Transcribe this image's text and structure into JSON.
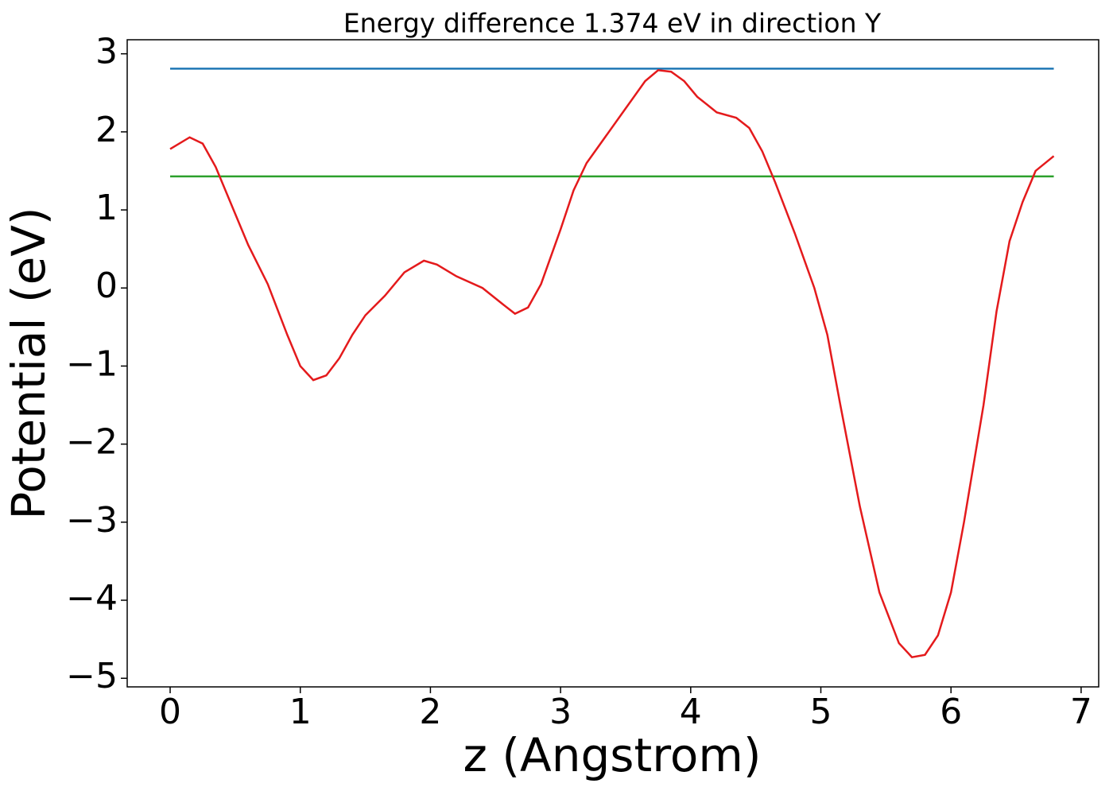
{
  "chart_data": {
    "type": "line",
    "title": "Energy difference 1.374 eV in direction Y",
    "xlabel": "z (Angstrom)",
    "ylabel": "Potential (eV)",
    "xlim": [
      -0.33,
      7.135
    ],
    "ylim": [
      -5.11,
      3.18
    ],
    "xticks": [
      0,
      1,
      2,
      3,
      4,
      5,
      6,
      7
    ],
    "yticks": [
      {
        "value": -5,
        "label": "−5"
      },
      {
        "value": -4,
        "label": "−4"
      },
      {
        "value": -3,
        "label": "−3"
      },
      {
        "value": -2,
        "label": "−2"
      },
      {
        "value": -1,
        "label": "−1"
      },
      0,
      1,
      2,
      3
    ],
    "series": [
      {
        "color": "#1f77b4",
        "x": [
          0,
          6.79
        ],
        "values": [
          2.81,
          2.81
        ]
      },
      {
        "color": "#2ca02c",
        "x": [
          0,
          6.79
        ],
        "values": [
          1.43,
          1.43
        ]
      },
      {
        "color": "#e41a1c",
        "x": [
          0,
          0.15,
          0.25,
          0.35,
          0.5,
          0.6,
          0.75,
          0.9,
          1.0,
          1.1,
          1.2,
          1.3,
          1.4,
          1.5,
          1.65,
          1.8,
          1.95,
          2.05,
          2.2,
          2.4,
          2.55,
          2.65,
          2.75,
          2.85,
          3.0,
          3.1,
          3.2,
          3.35,
          3.5,
          3.65,
          3.75,
          3.85,
          3.95,
          4.05,
          4.2,
          4.35,
          4.45,
          4.55,
          4.65,
          4.8,
          4.95,
          5.05,
          5.15,
          5.3,
          5.45,
          5.6,
          5.7,
          5.8,
          5.9,
          6.0,
          6.1,
          6.25,
          6.35,
          6.45,
          6.55,
          6.65,
          6.79
        ],
        "values": [
          1.78,
          1.93,
          1.85,
          1.55,
          0.95,
          0.55,
          0.05,
          -0.6,
          -1.0,
          -1.18,
          -1.12,
          -0.9,
          -0.6,
          -0.35,
          -0.1,
          0.2,
          0.35,
          0.3,
          0.15,
          0.0,
          -0.2,
          -0.33,
          -0.25,
          0.05,
          0.75,
          1.25,
          1.6,
          1.95,
          2.3,
          2.65,
          2.79,
          2.77,
          2.65,
          2.45,
          2.25,
          2.18,
          2.05,
          1.75,
          1.35,
          0.7,
          0.0,
          -0.6,
          -1.5,
          -2.8,
          -3.9,
          -4.55,
          -4.73,
          -4.7,
          -4.45,
          -3.9,
          -3.0,
          -1.5,
          -0.3,
          0.6,
          1.1,
          1.5,
          1.69
        ]
      }
    ]
  }
}
